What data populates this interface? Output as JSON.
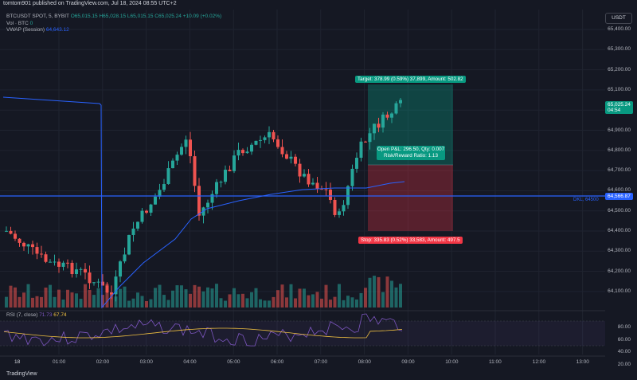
{
  "header": {
    "published": "tomtom901 published on TradingView.com, Jul 18, 2024 08:55 UTC+2"
  },
  "legend": {
    "symbol": "BTCUSDT SPOT, 5, BYBIT",
    "open": "O65,015.15",
    "high": "H65,028.15",
    "low": "L65,015.15",
    "close": "C65,025.24",
    "change": "+10.09 (+0.02%)",
    "vol_label": "Vol · BTC",
    "vol_value": "0",
    "vwap_label": "VWAP (Session)",
    "vwap_value": "64,643.12"
  },
  "currency_button": "USDT",
  "price_axis": [
    "65,400.00",
    "65,300.00",
    "65,200.00",
    "65,100.00",
    "65,000.00",
    "64,900.00",
    "64,800.00",
    "64,700.00",
    "64,600.00",
    "64,500.00",
    "64,400.00",
    "64,300.00",
    "64,200.00",
    "64,100.00"
  ],
  "current_price": {
    "price": "65,025.24",
    "countdown": "04:54"
  },
  "dkl_line": {
    "label": "DKL, 64500",
    "price": "64,566.87"
  },
  "time_axis": [
    "18",
    "01:00",
    "02:00",
    "03:00",
    "04:00",
    "05:00",
    "06:00",
    "07:00",
    "08:00",
    "09:00",
    "10:00",
    "11:00",
    "12:00",
    "13:00"
  ],
  "position": {
    "target": "Target: 378.99 (0.59%) 37,899, Amount: 502.82",
    "open_pnl": "Open P&L: 296.50, Qty: 0.007",
    "rr": "Risk/Reward Ratio: 1.13",
    "stop": "Stop: 335.83 (0.52%) 33,583, Amount: 497.5"
  },
  "rsi": {
    "label": "RSI (7, close)",
    "value1": "71.73",
    "value2": "67.74",
    "levels": [
      "80.00",
      "60.00",
      "40.00",
      "20.00"
    ]
  },
  "footer": {
    "brand": "TradingView"
  },
  "colors": {
    "up": "#26a69a",
    "down": "#ef5350",
    "vwap": "#2962ff",
    "rsi": "#7e57c2",
    "rsi_ma": "#f0c040"
  }
}
